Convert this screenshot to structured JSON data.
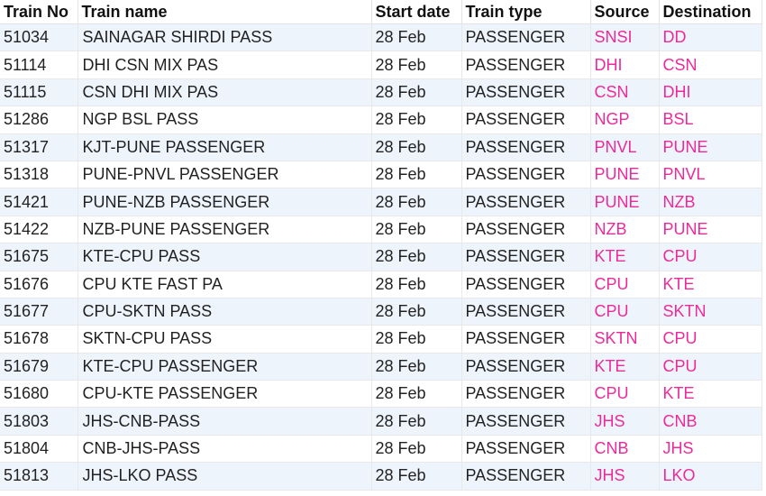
{
  "table": {
    "headers": [
      "Train No",
      "Train name",
      "Start date",
      "Train type",
      "Source",
      "Destination"
    ],
    "rows": [
      {
        "no": "51034",
        "name": "SAINAGAR SHIRDI PASS",
        "date": "28 Feb",
        "type": "PASSENGER",
        "src": "SNSI",
        "dst": "DD"
      },
      {
        "no": "51114",
        "name": "DHI CSN MIX PAS",
        "date": "28 Feb",
        "type": "PASSENGER",
        "src": "DHI",
        "dst": "CSN"
      },
      {
        "no": "51115",
        "name": "CSN DHI MIX PAS",
        "date": "28 Feb",
        "type": "PASSENGER",
        "src": "CSN",
        "dst": "DHI"
      },
      {
        "no": "51286",
        "name": "NGP BSL PASS",
        "date": "28 Feb",
        "type": "PASSENGER",
        "src": "NGP",
        "dst": "BSL"
      },
      {
        "no": "51317",
        "name": "KJT-PUNE PASSENGER",
        "date": "28 Feb",
        "type": "PASSENGER",
        "src": "PNVL",
        "dst": "PUNE"
      },
      {
        "no": "51318",
        "name": "PUNE-PNVL PASSENGER",
        "date": "28 Feb",
        "type": "PASSENGER",
        "src": "PUNE",
        "dst": "PNVL"
      },
      {
        "no": "51421",
        "name": "PUNE-NZB PASSENGER",
        "date": "28 Feb",
        "type": "PASSENGER",
        "src": "PUNE",
        "dst": "NZB"
      },
      {
        "no": "51422",
        "name": "NZB-PUNE PASSENGER",
        "date": "28 Feb",
        "type": "PASSENGER",
        "src": "NZB",
        "dst": "PUNE"
      },
      {
        "no": "51675",
        "name": "KTE-CPU PASS",
        "date": "28 Feb",
        "type": "PASSENGER",
        "src": "KTE",
        "dst": "CPU"
      },
      {
        "no": "51676",
        "name": "CPU KTE FAST PA",
        "date": "28 Feb",
        "type": "PASSENGER",
        "src": "CPU",
        "dst": "KTE"
      },
      {
        "no": "51677",
        "name": "CPU-SKTN PASS",
        "date": "28 Feb",
        "type": "PASSENGER",
        "src": "CPU",
        "dst": "SKTN"
      },
      {
        "no": "51678",
        "name": "SKTN-CPU PASS",
        "date": "28 Feb",
        "type": "PASSENGER",
        "src": "SKTN",
        "dst": "CPU"
      },
      {
        "no": "51679",
        "name": "KTE-CPU PASSENGER",
        "date": "28 Feb",
        "type": "PASSENGER",
        "src": "KTE",
        "dst": "CPU"
      },
      {
        "no": "51680",
        "name": "CPU-KTE PASSENGER",
        "date": "28 Feb",
        "type": "PASSENGER",
        "src": "CPU",
        "dst": "KTE"
      },
      {
        "no": "51803",
        "name": "JHS-CNB-PASS",
        "date": "28 Feb",
        "type": "PASSENGER",
        "src": "JHS",
        "dst": "CNB"
      },
      {
        "no": "51804",
        "name": "CNB-JHS-PASS",
        "date": "28 Feb",
        "type": "PASSENGER",
        "src": "CNB",
        "dst": "JHS"
      },
      {
        "no": "51813",
        "name": "JHS-LKO PASS",
        "date": "28 Feb",
        "type": "PASSENGER",
        "src": "JHS",
        "dst": "LKO"
      }
    ]
  },
  "colors": {
    "station_code": "#ee2a9a",
    "alt_row": "#eef4fb",
    "grid": "#e8e8e8"
  }
}
